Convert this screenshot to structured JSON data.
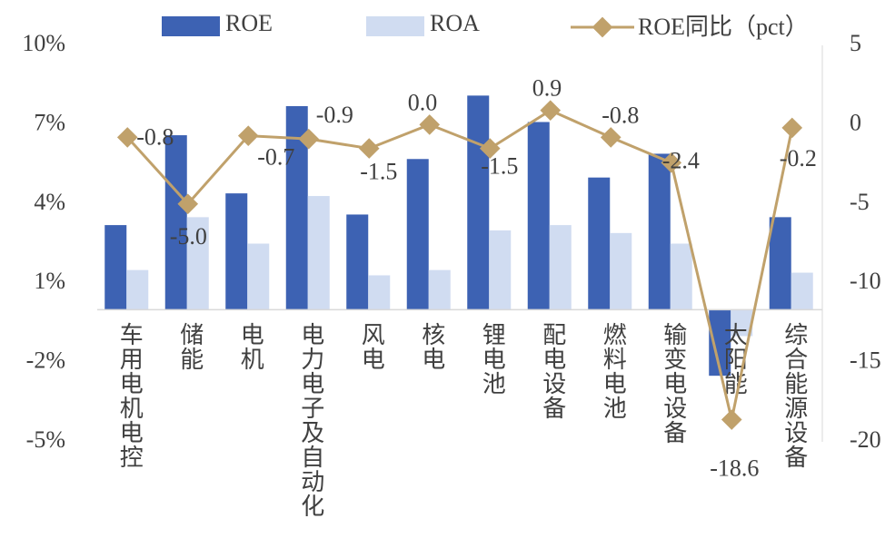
{
  "chart_data": {
    "type": "bar",
    "categories": [
      "车用电机电控",
      "储能",
      "电机",
      "电力电子及自动化",
      "风电",
      "核电",
      "锂电池",
      "配电设备",
      "燃料电池",
      "输变电设备",
      "太阳能",
      "综合能源设备"
    ],
    "series": [
      {
        "name": "ROE",
        "color": "#3d62b3",
        "values": [
          3.2,
          6.6,
          4.4,
          7.7,
          3.6,
          5.7,
          8.1,
          7.1,
          5.0,
          5.9,
          -2.5,
          3.5
        ]
      },
      {
        "name": "ROA",
        "color": "#d0dcf1",
        "values": [
          1.5,
          3.5,
          2.5,
          4.3,
          1.3,
          1.5,
          3.0,
          3.2,
          2.9,
          2.5,
          -1.0,
          1.4
        ]
      },
      {
        "name": "ROE同比（pct）",
        "color": "#c0a16b",
        "type": "line",
        "axis": "y2",
        "values": [
          -0.8,
          -5.0,
          -0.7,
          -0.9,
          -1.5,
          0.0,
          -1.5,
          0.9,
          -0.8,
          -2.4,
          -18.6,
          -0.2
        ],
        "value_labels": [
          "-0.8",
          "-5.0",
          "-0.7",
          "-0.9",
          "-1.5",
          "0.0",
          "-1.5",
          "0.9",
          "-0.8",
          "-2.4",
          "-18.6",
          "-0.2"
        ]
      }
    ],
    "ylim": [
      -5,
      10
    ],
    "yticks": [
      {
        "value": 10,
        "label": "10%"
      },
      {
        "value": 7,
        "label": "7%"
      },
      {
        "value": 4,
        "label": "4%"
      },
      {
        "value": 1,
        "label": "1%"
      },
      {
        "value": -2,
        "label": "-2%"
      },
      {
        "value": -5,
        "label": "-5%"
      }
    ],
    "y2lim": [
      -20,
      5
    ],
    "y2ticks": [
      5,
      0,
      -5,
      -10,
      -15,
      -20
    ],
    "legend": "top"
  }
}
